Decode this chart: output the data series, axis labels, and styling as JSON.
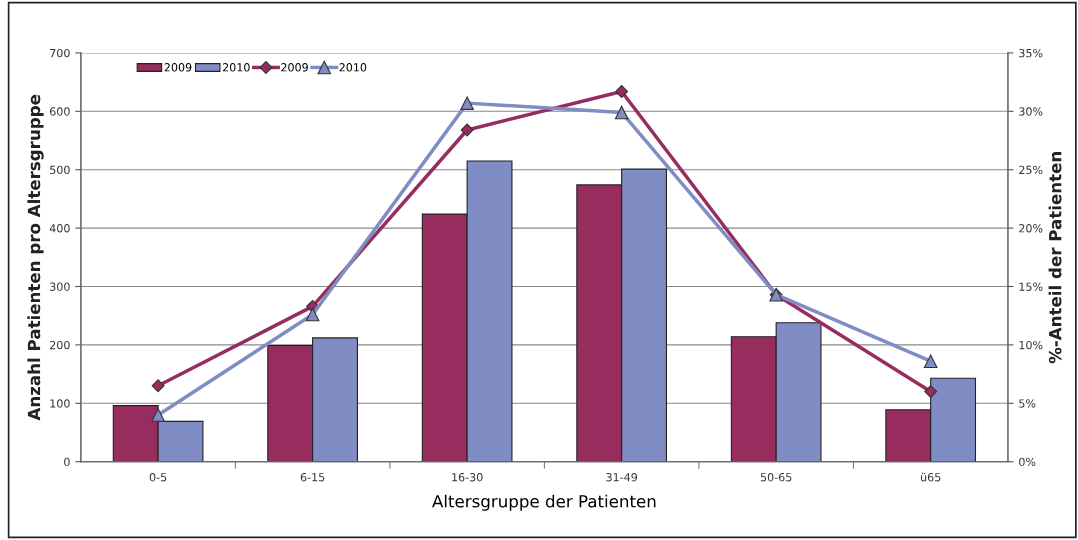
{
  "chart_data": {
    "type": "bar",
    "xlabel": "Altersgruppe der Patienten",
    "ylabel": "Anzahl Patienten pro Altersgruppe",
    "y2label": "%-Anteil der Patienten",
    "categories": [
      "0-5",
      "6-15",
      "16-30",
      "31-49",
      "50-65",
      "ü65"
    ],
    "series": [
      {
        "name": "2009",
        "color": "#962d5e",
        "values": [
          96,
          199,
          424,
          474,
          214,
          89
        ]
      },
      {
        "name": "2010",
        "color": "#808cc4",
        "values": [
          69,
          212,
          515,
          501,
          238,
          143
        ]
      },
      {
        "name": "2009",
        "type": "line",
        "axis": "y2",
        "marker": "diamond",
        "color": "#962d5e",
        "values": [
          6.5,
          13.3,
          28.4,
          31.7,
          14.3,
          6.0
        ]
      },
      {
        "name": "2010",
        "type": "line",
        "axis": "y2",
        "marker": "triangle",
        "color": "#808cc4",
        "values": [
          4.0,
          12.6,
          30.7,
          29.9,
          14.3,
          8.6
        ]
      }
    ],
    "ylim": [
      0,
      700
    ],
    "yticks": [
      0,
      100,
      200,
      300,
      400,
      500,
      600,
      700
    ],
    "y2lim": [
      0,
      35
    ],
    "y2ticks": [
      {
        "value": 0,
        "label": "0%"
      },
      {
        "value": 5,
        "label": "5%"
      },
      {
        "value": 10,
        "label": "10%"
      },
      {
        "value": 15,
        "label": "15%"
      },
      {
        "value": 20,
        "label": "20%"
      },
      {
        "value": 25,
        "label": "25%"
      },
      {
        "value": 30,
        "label": "30%"
      },
      {
        "value": 35,
        "label": "35%"
      }
    ],
    "grid": "y",
    "legend": "top left"
  }
}
